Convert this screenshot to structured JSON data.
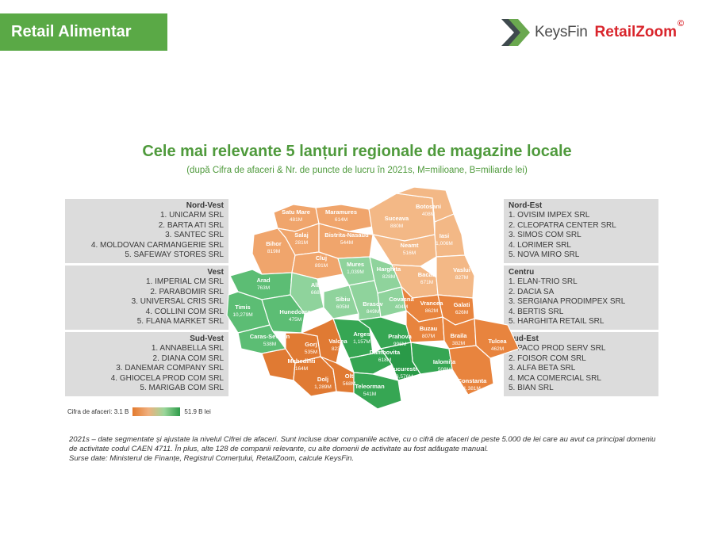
{
  "header": {
    "badge": "Retail Alimentar",
    "logo_keysfin": "KeysFin",
    "logo_retailzoom": "RetailZoom",
    "logo_copyright": "©"
  },
  "title": "Cele mai relevante 5 lanțuri regionale de magazine locale",
  "subtitle": "(după Cifra de afaceri & Nr. de puncte de lucru în 2021s, M=milioane, B=miliarde lei)",
  "regions": {
    "nord_vest": {
      "name": "Nord-Vest",
      "items": [
        "1. UNICARM SRL",
        "2. BARTA ATI SRL",
        "3. SANTEC SRL",
        "4. MOLDOVAN CARMANGERIE SRL",
        "5. SAFEWAY STORES SRL"
      ]
    },
    "vest": {
      "name": "Vest",
      "items": [
        "1. IMPERIAL CM SRL",
        "2. PARABOMIR SRL",
        "3. UNIVERSAL CRIS SRL",
        "4. COLLINI COM SRL",
        "5. FLANA MARKET SRL"
      ]
    },
    "sud_vest": {
      "name": "Sud-Vest",
      "items": [
        "1. ANNABELLA SRL",
        "2. DIANA COM SRL",
        "3. DANEMAR COMPANY SRL",
        "4. GHIOCELA PROD COM SRL",
        "5. MARIGAB COM SRL"
      ]
    },
    "nord_est": {
      "name": "Nord-Est",
      "items": [
        "1. OVISIM IMPEX SRL",
        "2. CLEOPATRA CENTER SRL",
        "3. SIMOS COM SRL",
        "4. LORIMER SRL",
        "5. NOVA MIRO SRL"
      ]
    },
    "centru": {
      "name": "Centru",
      "items": [
        "1. ELAN-TRIO SRL",
        "2. DACIA SA",
        "3. SERGIANA PRODIMPEX SRL",
        "4. BERTIS SRL",
        "5. HARGHITA RETAIL SRL"
      ]
    },
    "sud_est": {
      "name": "Sud-Est",
      "items": [
        "1. PACO PROD SERV SRL",
        "2. FOISOR COM SRL",
        "3. ALFA BETA SRL",
        "4. MCA COMERCIAL SRL",
        "5. BIAN SRL"
      ]
    }
  },
  "counties": [
    {
      "name": "Satu Mare",
      "value": "481M",
      "color": "#f0a56c"
    },
    {
      "name": "Maramures",
      "value": "614M",
      "color": "#f0a56c"
    },
    {
      "name": "Suceava",
      "value": "880M",
      "color": "#f3b886"
    },
    {
      "name": "Botosani",
      "value": "408M",
      "color": "#f3b886"
    },
    {
      "name": "Salaj",
      "value": "281M",
      "color": "#f0a56c"
    },
    {
      "name": "Bistrita-Nasaud",
      "value": "544M",
      "color": "#f0a56c"
    },
    {
      "name": "Iasi",
      "value": "1,006M",
      "color": "#f3b886"
    },
    {
      "name": "Neamt",
      "value": "516M",
      "color": "#f3b886"
    },
    {
      "name": "Bihor",
      "value": "819M",
      "color": "#f0a56c"
    },
    {
      "name": "Cluj",
      "value": "891M",
      "color": "#f0a56c"
    },
    {
      "name": "Mures",
      "value": "1,039M",
      "color": "#8fd39c"
    },
    {
      "name": "Harghita",
      "value": "828M",
      "color": "#8fd39c"
    },
    {
      "name": "Bacau",
      "value": "671M",
      "color": "#f3b886"
    },
    {
      "name": "Vaslui",
      "value": "827M",
      "color": "#f3b886"
    },
    {
      "name": "Arad",
      "value": "763M",
      "color": "#5cbd74"
    },
    {
      "name": "Alba",
      "value": "668M",
      "color": "#8fd39c"
    },
    {
      "name": "Sibiu",
      "value": "605M",
      "color": "#8fd39c"
    },
    {
      "name": "Brasov",
      "value": "849M",
      "color": "#8fd39c"
    },
    {
      "name": "Covasna",
      "value": "404M",
      "color": "#8fd39c"
    },
    {
      "name": "Vrancea",
      "value": "862M",
      "color": "#e8843e"
    },
    {
      "name": "Galati",
      "value": "626M",
      "color": "#e8843e"
    },
    {
      "name": "Timis",
      "value": "10,279M",
      "color": "#5cbd74"
    },
    {
      "name": "Hunedoara",
      "value": "475M",
      "color": "#5cbd74"
    },
    {
      "name": "Caras-Severin",
      "value": "538M",
      "color": "#5cbd74"
    },
    {
      "name": "Arges",
      "value": "1,157M",
      "color": "#36a653"
    },
    {
      "name": "Prahova",
      "value": "996M",
      "color": "#36a653"
    },
    {
      "name": "Buzau",
      "value": "807M",
      "color": "#e8843e"
    },
    {
      "name": "Braila",
      "value": "382M",
      "color": "#e8843e"
    },
    {
      "name": "Tulcea",
      "value": "462M",
      "color": "#e8843e"
    },
    {
      "name": "Gorj",
      "value": "535M",
      "color": "#e07a33"
    },
    {
      "name": "Valcea",
      "value": "823M",
      "color": "#e07a33"
    },
    {
      "name": "Mehedinti",
      "value": "164M",
      "color": "#e07a33"
    },
    {
      "name": "Dambovita",
      "value": "618M",
      "color": "#36a653"
    },
    {
      "name": "Ialomita",
      "value": "508M",
      "color": "#36a653"
    },
    {
      "name": "Bucuresti",
      "value": "43,576M",
      "color": "#2a9a48"
    },
    {
      "name": "Dolj",
      "value": "1,289M",
      "color": "#e07a33"
    },
    {
      "name": "Olt",
      "value": "568M",
      "color": "#e07a33"
    },
    {
      "name": "Teleorman",
      "value": "541M",
      "color": "#36a653"
    },
    {
      "name": "Constanta",
      "value": "1,381M",
      "color": "#e8843e"
    }
  ],
  "legend": {
    "label": "Cifra de afaceri: 3.1 B",
    "max_label": "51.9 B lei",
    "min_color": "#e37a2e",
    "max_color": "#2e9c4a"
  },
  "notes": [
    "2021s – date segmentate și ajustate la nivelul Cifrei de afaceri. Sunt incluse doar companiile active, cu o cifră de afaceri de peste 5.000 de lei care au avut ca principal domeniu de activitate codul CAEN 4711. În plus, alte 128 de companii relevante, cu alte domenii de activitate au fost adăugate manual.",
    "Surse date: Ministerul de Finanțe, Registrul Comerțului, RetailZoom, calcule KeysFin."
  ]
}
